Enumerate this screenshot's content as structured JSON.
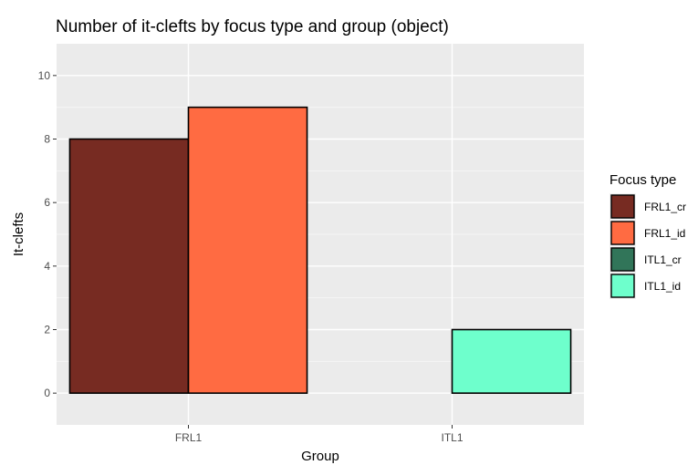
{
  "chart_data": {
    "type": "bar",
    "title": "Number of it-clefts by focus type and group (object)",
    "xlabel": "Group",
    "ylabel": "It-clefts",
    "categories": [
      "FRL1",
      "ITL1"
    ],
    "ylim": [
      -1,
      11
    ],
    "yticks": [
      0,
      2,
      4,
      6,
      8,
      10
    ],
    "grid": true,
    "legend_position": "right",
    "legend_title": "Focus type",
    "series": [
      {
        "name": "FRL1_cr",
        "color": "#772b22",
        "values": [
          8,
          null
        ]
      },
      {
        "name": "FRL1_id",
        "color": "#ff6b42",
        "values": [
          9,
          null
        ]
      },
      {
        "name": "ITL1_cr",
        "color": "#317559",
        "values": [
          null,
          0
        ]
      },
      {
        "name": "ITL1_id",
        "color": "#6effcc",
        "values": [
          null,
          2
        ]
      }
    ]
  }
}
